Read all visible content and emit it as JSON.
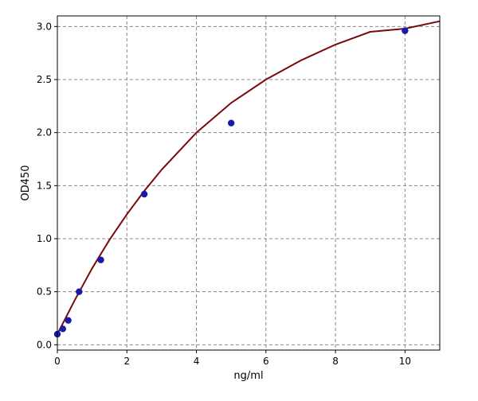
{
  "chart_data": {
    "type": "scatter",
    "title": "",
    "xlabel": "ng/ml",
    "ylabel": "OD450",
    "xlim": [
      0,
      11
    ],
    "ylim": [
      -0.05,
      3.1
    ],
    "xticks": [
      0,
      2,
      4,
      6,
      8,
      10
    ],
    "yticks": [
      0.0,
      0.5,
      1.0,
      1.5,
      2.0,
      2.5,
      3.0
    ],
    "xtick_labels": [
      "0",
      "2",
      "4",
      "6",
      "8",
      "10"
    ],
    "ytick_labels": [
      "0.0",
      "0.5",
      "1.0",
      "1.5",
      "2.0",
      "2.5",
      "3.0"
    ],
    "grid": true,
    "legend": "none",
    "series": [
      {
        "kind": "points",
        "color": "#1a1aa8",
        "x": [
          0,
          0.156,
          0.3125,
          0.625,
          1.25,
          2.5,
          5,
          10
        ],
        "y": [
          0.1,
          0.15,
          0.23,
          0.5,
          0.8,
          1.42,
          2.09,
          2.96
        ]
      },
      {
        "kind": "fit",
        "color": "#7a0a0a",
        "x": [
          0,
          0.5,
          1,
          1.5,
          2,
          2.5,
          3,
          4,
          5,
          6,
          7,
          8,
          9,
          10,
          11
        ],
        "y": [
          0.1,
          0.42,
          0.72,
          0.99,
          1.23,
          1.45,
          1.65,
          2.0,
          2.28,
          2.5,
          2.68,
          2.83,
          2.95,
          2.98,
          3.05
        ]
      }
    ]
  }
}
